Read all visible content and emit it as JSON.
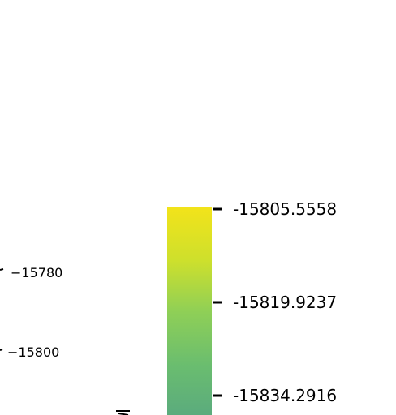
{
  "chart_data": {
    "type": "colorbar",
    "colormap": "viridis",
    "colormap_stops": [
      "#f2e31a",
      "#cee02c",
      "#8ecf57",
      "#6abd6f",
      "#5aaa7e"
    ],
    "colorbar": {
      "visible_range": [
        -15846.5,
        -15805.5558
      ],
      "ticks": [
        {
          "value": -15805.5558,
          "label": "-15805.5558"
        },
        {
          "value": -15819.9237,
          "label": "-15819.9237"
        },
        {
          "value": -15834.2916,
          "label": "-15834.2916"
        }
      ]
    },
    "axis_tick_labels": [
      {
        "value": -15780,
        "label": "−15780"
      },
      {
        "value": -15800,
        "label": "−15800"
      }
    ]
  }
}
